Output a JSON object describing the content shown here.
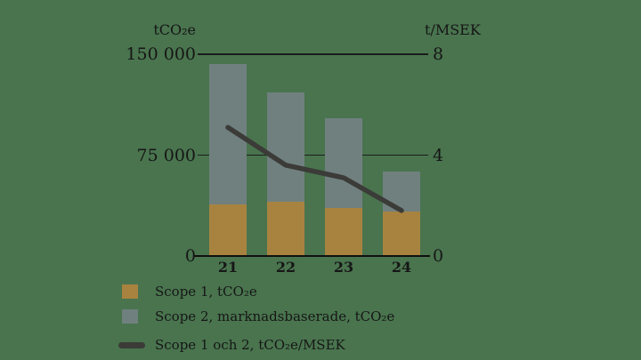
{
  "chart": {
    "left_axis_title": "tCO₂e",
    "right_axis_title": "t/MSEK",
    "left_ticks": [
      {
        "value": 150000,
        "label": "150 000"
      },
      {
        "value": 75000,
        "label": "75 000"
      },
      {
        "value": 0,
        "label": "0"
      }
    ],
    "right_ticks": [
      {
        "value": 8,
        "label": "8"
      },
      {
        "value": 4,
        "label": "4"
      },
      {
        "value": 0,
        "label": "0"
      }
    ],
    "gridline_values": [
      150000,
      75000
    ]
  },
  "chart_data": {
    "type": "bar",
    "subtype": "stacked bars with secondary-axis line",
    "categories": [
      "21",
      "22",
      "23",
      "24"
    ],
    "series": [
      {
        "name": "Scope 1, tCO₂e",
        "type": "bar",
        "stack": true,
        "color": "#a8833f",
        "values": [
          38000,
          40000,
          35500,
          33000
        ]
      },
      {
        "name": "Scope 2, marknadsbaserade, tCO₂e",
        "type": "bar",
        "stack": true,
        "color": "#70807f",
        "values": [
          105000,
          81500,
          67000,
          30000
        ]
      },
      {
        "name": "Scope 1 och 2, tCO₂e/MSEK",
        "type": "line",
        "axis": "right",
        "color": "#3b3b38",
        "values": [
          5.1,
          3.6,
          3.1,
          1.8
        ]
      }
    ],
    "stacked_totals": [
      143000,
      121500,
      102500,
      63000
    ],
    "left_axis": {
      "title": "tCO₂e",
      "range": [
        0,
        150000
      ],
      "ticks": [
        0,
        75000,
        150000
      ]
    },
    "right_axis": {
      "title": "t/MSEK",
      "range": [
        0,
        8
      ],
      "ticks": [
        0,
        4,
        8
      ]
    },
    "grid": "horizontal gridlines at 75 000 / 150 000 (4 / 8)",
    "legend_position": "bottom-left"
  },
  "legend": [
    {
      "swatch": "square",
      "color": "#a8833f",
      "label": "Scope 1, tCO₂e"
    },
    {
      "swatch": "square",
      "color": "#70807f",
      "label": "Scope 2, marknadsbaserade, tCO₂e"
    },
    {
      "swatch": "line",
      "color": "#3b3b38",
      "label": "Scope 1 och 2, tCO₂e/MSEK"
    }
  ],
  "colors": {
    "background": "#49744e",
    "scope1_bar": "#a8833f",
    "scope2_bar": "#70807f",
    "line": "#3b3b38",
    "text": "#161616",
    "axis": "#101010"
  }
}
